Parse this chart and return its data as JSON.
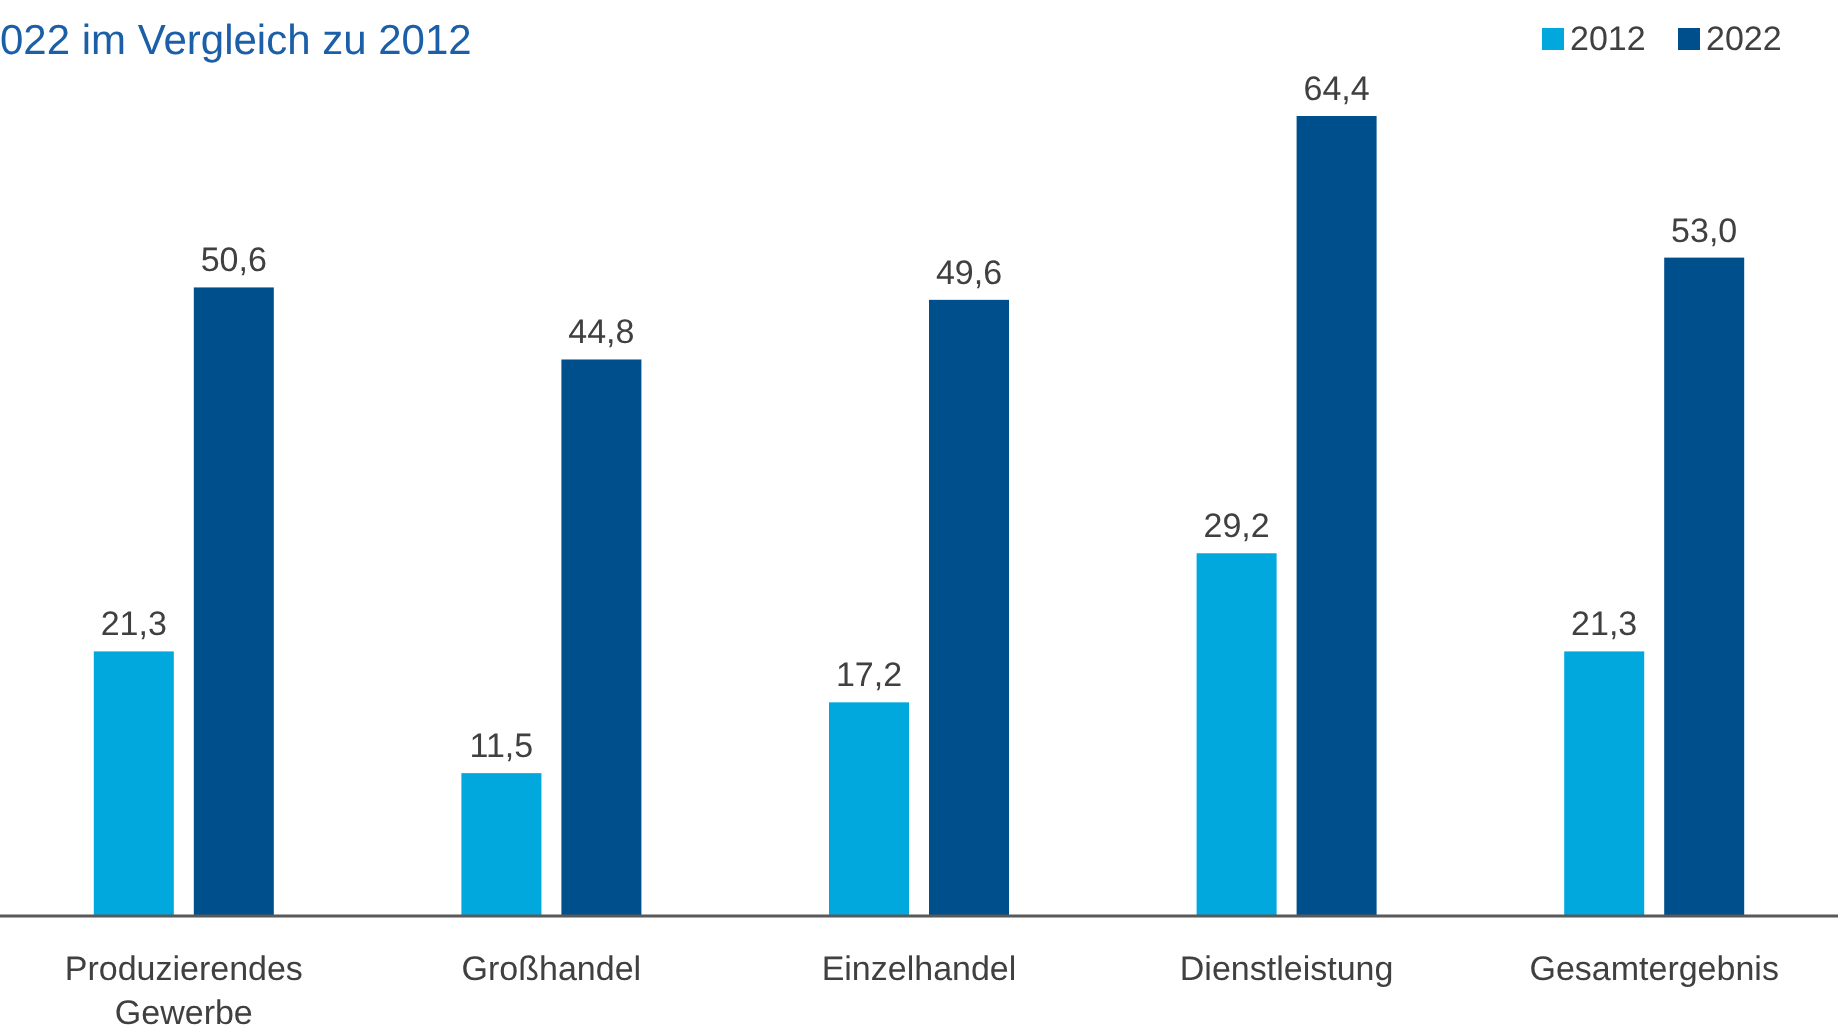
{
  "chart_data": {
    "type": "bar",
    "title": "022 im Vergleich zu 2012",
    "categories": [
      "Produzierendes Gewerbe",
      "Großhandel",
      "Einzelhandel",
      "Dienstleistung",
      "Gesamtergebnis"
    ],
    "series": [
      {
        "name": "2012",
        "color": "#00a8de",
        "values": [
          21.3,
          11.5,
          17.2,
          29.2,
          21.3
        ],
        "value_labels": [
          "21,3",
          "11,5",
          "17,2",
          "29,2",
          "21,3"
        ]
      },
      {
        "name": "2022",
        "color": "#004f8d",
        "values": [
          50.6,
          44.8,
          49.6,
          64.4,
          53.0
        ],
        "value_labels": [
          "50,6",
          "44,8",
          "49,6",
          "64,4",
          "53,0"
        ]
      }
    ],
    "legend": "top right",
    "grid": false
  }
}
